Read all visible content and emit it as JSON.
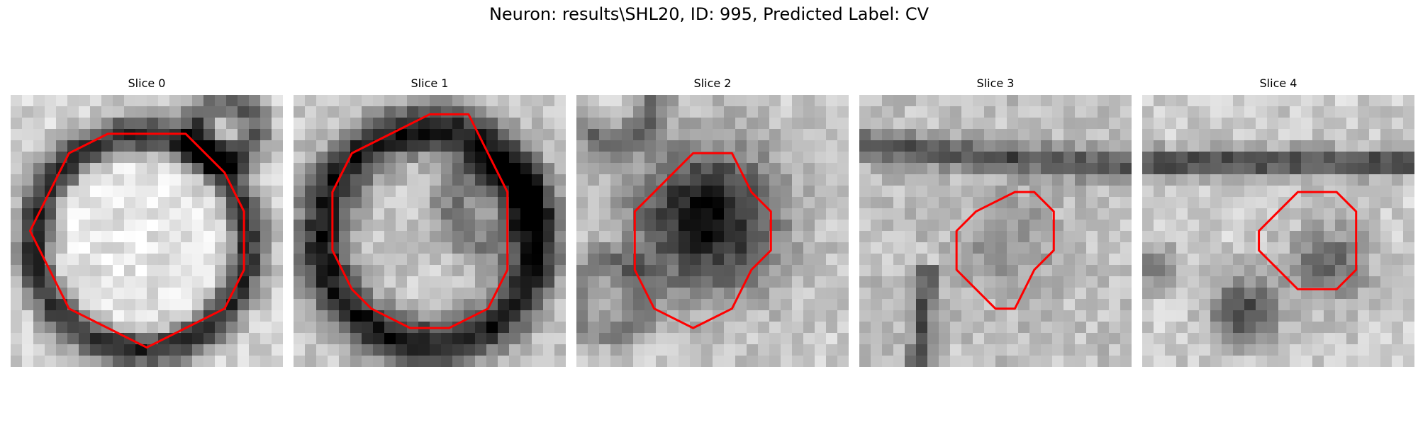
{
  "figure": {
    "suptitle": "Neuron: results\\SHL20, ID: 995, Predicted Label: CV",
    "contour_color": "#ff0000",
    "colormap": "gray",
    "slices": [
      {
        "title": "Slice 0",
        "image_description": "grayscale EM patch, bright round cell body with dark membrane ring",
        "contour": [
          [
            7,
            2
          ],
          [
            9,
            2
          ],
          [
            11,
            4
          ],
          [
            12,
            6
          ],
          [
            12,
            9
          ],
          [
            11,
            11
          ],
          [
            9,
            12
          ],
          [
            7,
            13
          ],
          [
            5,
            12
          ],
          [
            3,
            11
          ],
          [
            2,
            9
          ],
          [
            1,
            7
          ],
          [
            2,
            5
          ],
          [
            3,
            3
          ],
          [
            5,
            2
          ]
        ]
      },
      {
        "title": "Slice 1",
        "image_description": "grayscale EM patch, bright cell body surrounded by dark thick membrane",
        "contour": [
          [
            7,
            1
          ],
          [
            9,
            1
          ],
          [
            10,
            3
          ],
          [
            11,
            5
          ],
          [
            11,
            9
          ],
          [
            10,
            11
          ],
          [
            8,
            12
          ],
          [
            6,
            12
          ],
          [
            4,
            11
          ],
          [
            3,
            10
          ],
          [
            2,
            8
          ],
          [
            2,
            5
          ],
          [
            3,
            3
          ],
          [
            5,
            2
          ]
        ]
      },
      {
        "title": "Slice 2",
        "image_description": "grayscale EM patch, dark compact region in center",
        "contour": [
          [
            6,
            3
          ],
          [
            8,
            3
          ],
          [
            9,
            5
          ],
          [
            10,
            6
          ],
          [
            10,
            8
          ],
          [
            9,
            9
          ],
          [
            8,
            11
          ],
          [
            6,
            12
          ],
          [
            4,
            11
          ],
          [
            3,
            9
          ],
          [
            3,
            6
          ],
          [
            4,
            5
          ],
          [
            5,
            4
          ]
        ]
      },
      {
        "title": "Slice 3",
        "image_description": "grayscale noisy EM patch with faint structure and dark diagonal stripe",
        "contour": [
          [
            8,
            5
          ],
          [
            9,
            5
          ],
          [
            10,
            6
          ],
          [
            10,
            8
          ],
          [
            9,
            9
          ],
          [
            8,
            11
          ],
          [
            7,
            11
          ],
          [
            6,
            10
          ],
          [
            5,
            9
          ],
          [
            5,
            7
          ],
          [
            6,
            6
          ]
        ]
      },
      {
        "title": "Slice 4",
        "image_description": "grayscale EM patch with dark horizontal band near top and faint object at right",
        "contour": [
          [
            8,
            5
          ],
          [
            10,
            5
          ],
          [
            11,
            6
          ],
          [
            11,
            9
          ],
          [
            10,
            10
          ],
          [
            8,
            10
          ],
          [
            7,
            9
          ],
          [
            6,
            8
          ],
          [
            6,
            7
          ],
          [
            7,
            6
          ]
        ]
      }
    ]
  }
}
